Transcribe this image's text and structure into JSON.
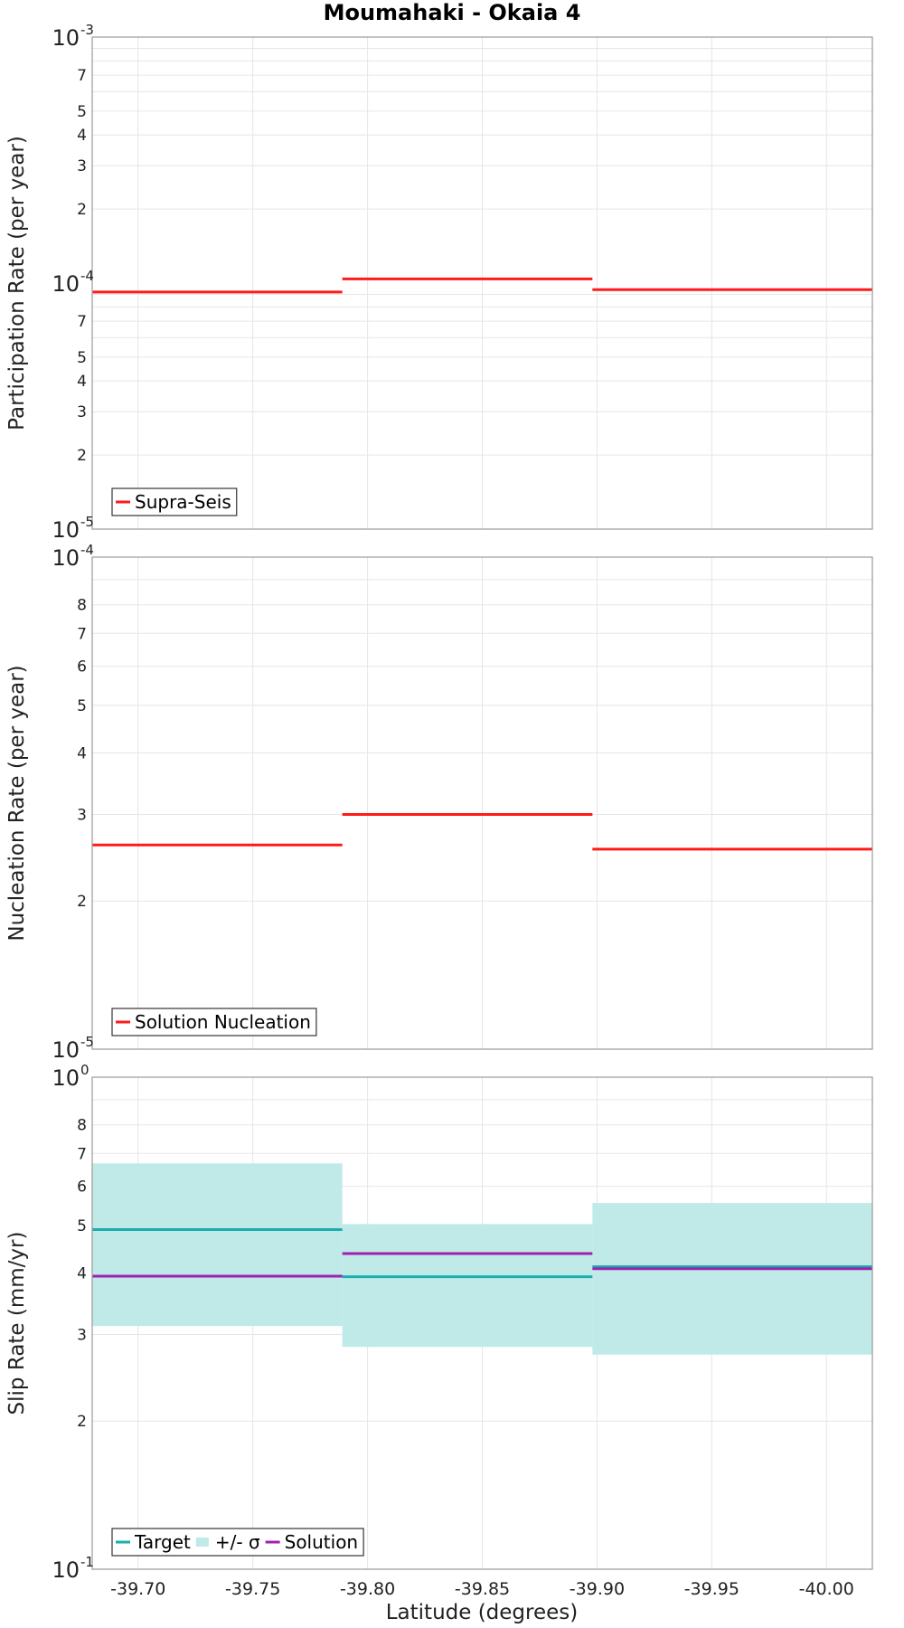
{
  "chart_data": {
    "title": "Moumahaki - Okaia 4",
    "xlabel": "Latitude (degrees)",
    "xlim": [
      -39.68,
      -40.02
    ],
    "x_ticks": [
      -39.7,
      -39.75,
      -39.8,
      -39.85,
      -39.9,
      -39.95,
      -40.0
    ],
    "x_tick_labels": [
      "-39.70",
      "-39.75",
      "-39.80",
      "-39.85",
      "-39.90",
      "-39.95",
      "-40.00"
    ],
    "section_bounds": [
      -39.68,
      -39.789,
      -39.898,
      -40.02
    ],
    "panels": [
      {
        "type": "line",
        "scale": "log",
        "ylabel": "Participation Rate (per year)",
        "ylim": [
          1e-05,
          0.001
        ],
        "major_ticks": [
          {
            "value": 0.001,
            "base": "10",
            "exp": "-3"
          },
          {
            "value": 0.0001,
            "base": "10",
            "exp": "-4"
          },
          {
            "value": 1e-05,
            "base": "10",
            "exp": "-5"
          }
        ],
        "minor_ticks": [
          {
            "value": 0.0007,
            "label": "7"
          },
          {
            "value": 0.0005,
            "label": "5"
          },
          {
            "value": 0.0004,
            "label": "4"
          },
          {
            "value": 0.0003,
            "label": "3"
          },
          {
            "value": 0.0002,
            "label": "2"
          },
          {
            "value": 7e-05,
            "label": "7"
          },
          {
            "value": 5e-05,
            "label": "5"
          },
          {
            "value": 4e-05,
            "label": "4"
          },
          {
            "value": 3e-05,
            "label": "3"
          },
          {
            "value": 2e-05,
            "label": "2"
          }
        ],
        "grid_values": [
          0.0009,
          0.0008,
          0.0007,
          0.0006,
          0.0005,
          0.0004,
          0.0003,
          0.0002,
          9e-05,
          8e-05,
          7e-05,
          6e-05,
          5e-05,
          4e-05,
          3e-05,
          2e-05
        ],
        "series": [
          {
            "name": "Supra-Seis",
            "color": "#ff1a1a",
            "values": [
              9.2e-05,
              0.000104,
              9.4e-05
            ]
          }
        ],
        "bands": [],
        "legend": [
          {
            "label": "Supra-Seis",
            "kind": "line",
            "color": "#ff1a1a"
          }
        ]
      },
      {
        "type": "line",
        "scale": "log",
        "ylabel": "Nucleation Rate (per year)",
        "ylim": [
          1e-05,
          0.0001
        ],
        "major_ticks": [
          {
            "value": 0.0001,
            "base": "10",
            "exp": "-4"
          },
          {
            "value": 1e-05,
            "base": "10",
            "exp": "-5"
          }
        ],
        "minor_ticks": [
          {
            "value": 8e-05,
            "label": "8"
          },
          {
            "value": 7e-05,
            "label": "7"
          },
          {
            "value": 6e-05,
            "label": "6"
          },
          {
            "value": 5e-05,
            "label": "5"
          },
          {
            "value": 4e-05,
            "label": "4"
          },
          {
            "value": 3e-05,
            "label": "3"
          },
          {
            "value": 2e-05,
            "label": "2"
          }
        ],
        "grid_values": [
          9e-05,
          8e-05,
          7e-05,
          6e-05,
          5e-05,
          4e-05,
          3e-05,
          2e-05
        ],
        "series": [
          {
            "name": "Solution Nucleation",
            "color": "#ff1a1a",
            "values": [
              2.6e-05,
              3e-05,
              2.55e-05
            ]
          }
        ],
        "bands": [],
        "legend": [
          {
            "label": "Solution Nucleation",
            "kind": "line",
            "color": "#ff1a1a"
          }
        ]
      },
      {
        "type": "line",
        "scale": "log",
        "ylabel": "Slip Rate (mm/yr)",
        "ylim": [
          0.1,
          1.0
        ],
        "major_ticks": [
          {
            "value": 1.0,
            "base": "10",
            "exp": "0"
          },
          {
            "value": 0.1,
            "base": "10",
            "exp": "-1"
          }
        ],
        "minor_ticks": [
          {
            "value": 0.8,
            "label": "8"
          },
          {
            "value": 0.7,
            "label": "7"
          },
          {
            "value": 0.6,
            "label": "6"
          },
          {
            "value": 0.5,
            "label": "5"
          },
          {
            "value": 0.4,
            "label": "4"
          },
          {
            "value": 0.3,
            "label": "3"
          },
          {
            "value": 0.2,
            "label": "2"
          }
        ],
        "grid_values": [
          0.9,
          0.8,
          0.7,
          0.6,
          0.5,
          0.4,
          0.3,
          0.2
        ],
        "series": [
          {
            "name": "Target",
            "color": "#1aaeae",
            "values": [
              0.49,
              0.393,
              0.412
            ]
          },
          {
            "name": "Solution",
            "color": "#a020b0",
            "values": [
              0.394,
              0.438,
              0.408
            ]
          }
        ],
        "bands": [
          {
            "name": "+/- σ",
            "color": "#bfeae8",
            "lower": [
              0.312,
              0.283,
              0.273
            ],
            "upper": [
              0.668,
              0.503,
              0.555
            ]
          }
        ],
        "legend": [
          {
            "label": "Target",
            "kind": "line",
            "color": "#1aaeae"
          },
          {
            "label": "+/- σ",
            "kind": "band",
            "color": "#bfeae8"
          },
          {
            "label": "Solution",
            "kind": "line",
            "color": "#a020b0"
          }
        ]
      }
    ]
  }
}
